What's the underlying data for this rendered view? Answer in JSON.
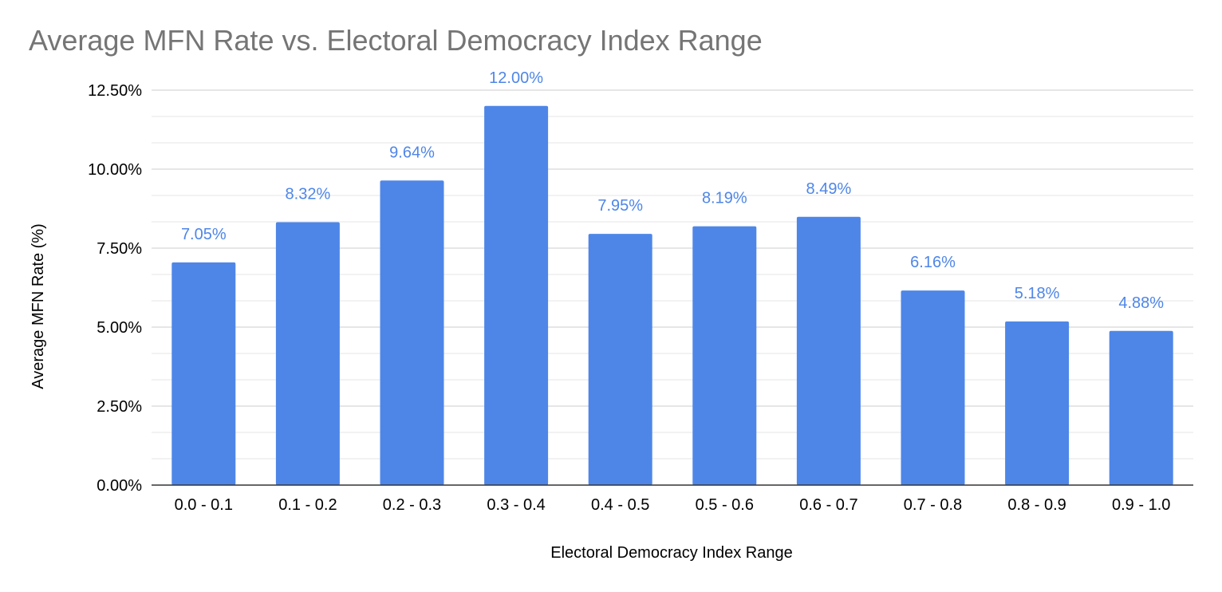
{
  "chart_data": {
    "type": "bar",
    "title": "Average MFN Rate vs. Electoral Democracy Index Range",
    "xlabel": "Electoral Democracy Index Range",
    "ylabel": "Average MFN Rate (%)",
    "categories": [
      "0.0 - 0.1",
      "0.1 - 0.2",
      "0.2 - 0.3",
      "0.3 - 0.4",
      "0.4 - 0.5",
      "0.5 - 0.6",
      "0.6 - 0.7",
      "0.7 - 0.8",
      "0.8 - 0.9",
      "0.9 - 1.0"
    ],
    "values": [
      7.05,
      8.32,
      9.64,
      12.0,
      7.95,
      8.19,
      8.49,
      6.16,
      5.18,
      4.88
    ],
    "data_labels": [
      "7.05%",
      "8.32%",
      "9.64%",
      "12.00%",
      "7.95%",
      "8.19%",
      "8.49%",
      "6.16%",
      "5.18%",
      "4.88%"
    ],
    "ylim": [
      0,
      12.5
    ],
    "yticks": [
      0,
      2.5,
      5,
      7.5,
      10,
      12.5
    ],
    "ytick_labels": [
      "0.00%",
      "2.50%",
      "5.00%",
      "7.50%",
      "10.00%",
      "12.50%"
    ],
    "grid": true,
    "legend": "none",
    "colors": {
      "bar": "#4e86e8",
      "data_label": "#4e86e8",
      "title": "#757575",
      "axis_text": "#000000",
      "major_grid": "#cccccc",
      "minor_grid": "#e6e6e6",
      "baseline": "#333333"
    }
  }
}
